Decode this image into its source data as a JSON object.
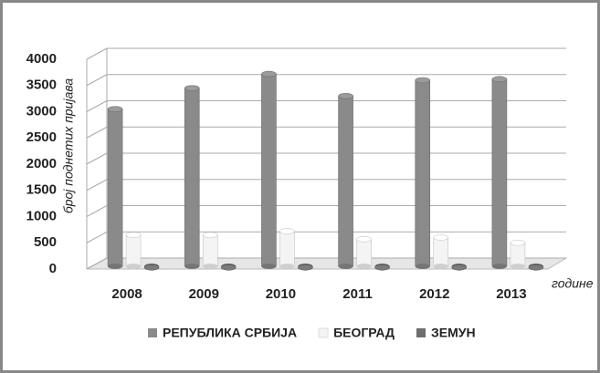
{
  "chart_data": {
    "type": "bar3d",
    "y_label": "број поднетих пријава",
    "x_label": "године",
    "categories": [
      "2008",
      "2009",
      "2010",
      "2011",
      "2012",
      "2013"
    ],
    "series": [
      {
        "name": "РЕПУБЛИКА СРБИЈА",
        "color": "#8a8a8a",
        "values": [
          3050,
          3450,
          3720,
          3300,
          3600,
          3620
        ]
      },
      {
        "name": "БЕОГРАД",
        "color": "#f4f4f4",
        "values": [
          650,
          650,
          720,
          570,
          600,
          500
        ]
      },
      {
        "name": "ЗЕМУН",
        "color": "#6e6e6e",
        "values": [
          30,
          30,
          30,
          30,
          30,
          30
        ]
      }
    ],
    "ylim": [
      0,
      4000
    ],
    "yticks": [
      0,
      500,
      1000,
      1500,
      2000,
      2500,
      3000,
      3500,
      4000
    ],
    "grid": true,
    "legend": "bottom"
  }
}
